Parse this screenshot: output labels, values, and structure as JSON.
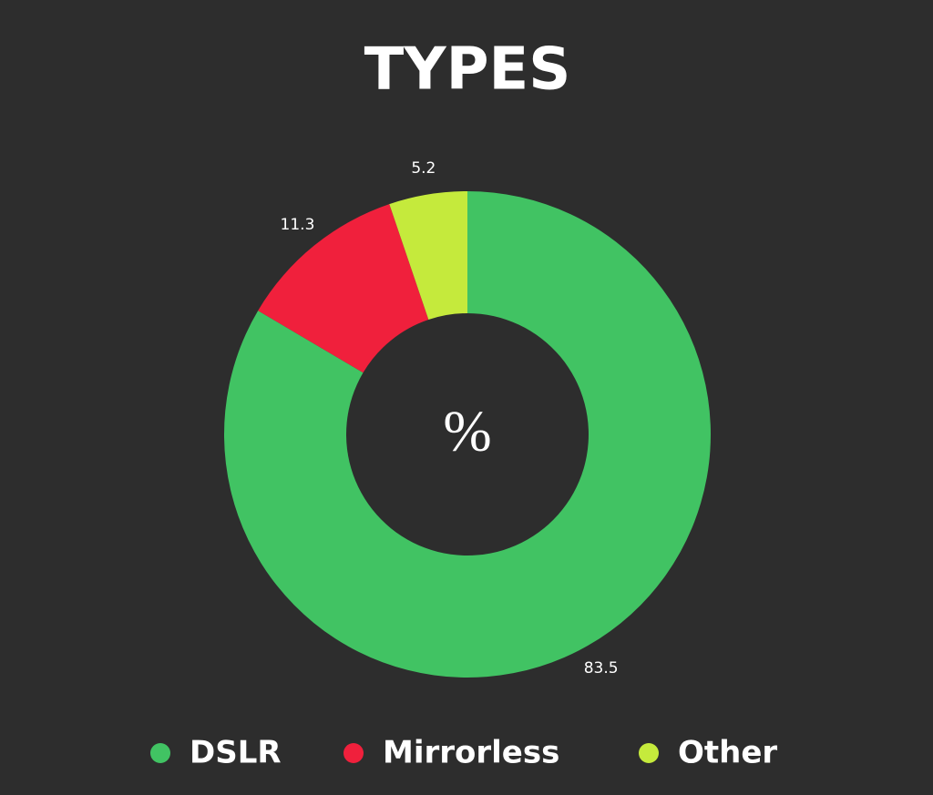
{
  "chart_data": {
    "type": "donut",
    "title": "TYPES",
    "center_label": "%",
    "categories": [
      "DSLR",
      "Mirrorless",
      "Other"
    ],
    "values": [
      83.5,
      11.3,
      5.2
    ],
    "colors": [
      "#41c363",
      "#f0203c",
      "#c5ea3c"
    ],
    "legend": "bottom"
  }
}
